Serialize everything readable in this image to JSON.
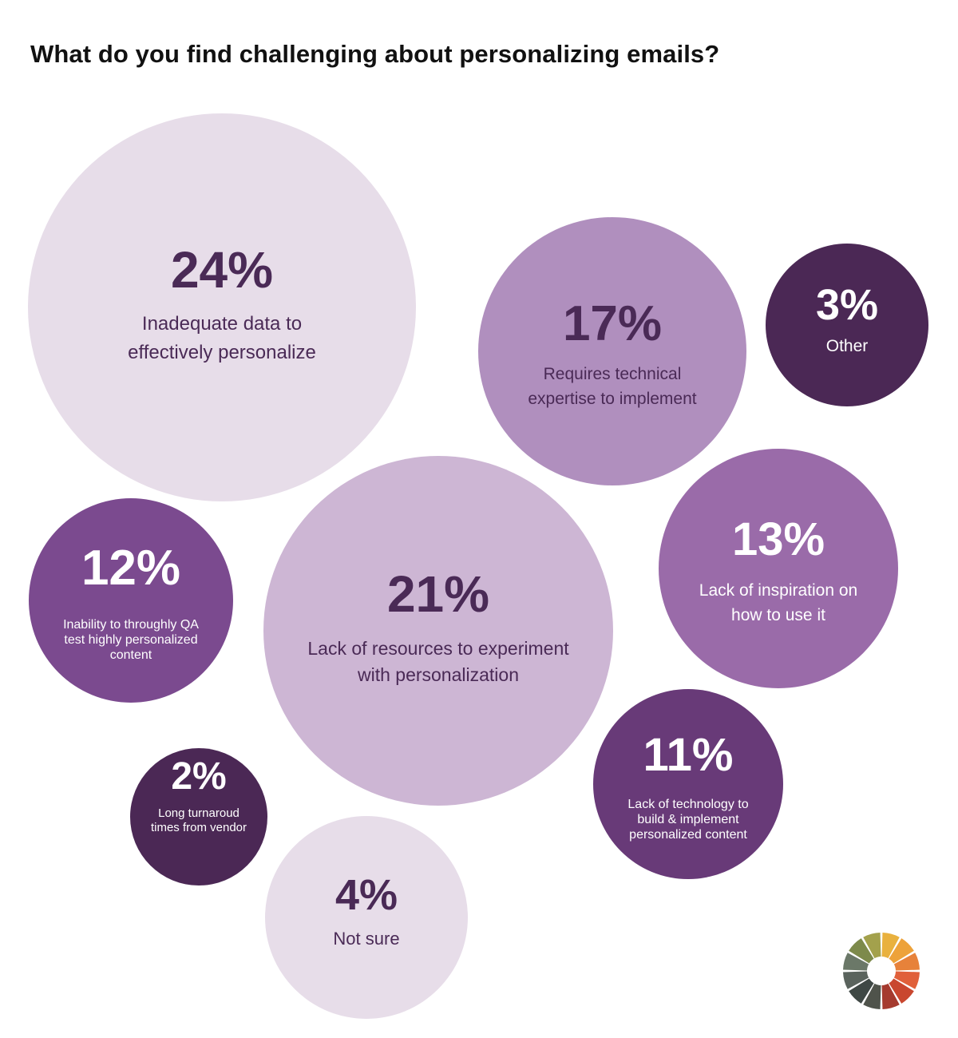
{
  "title": "What do you find challenging about personalizing emails?",
  "chart_data": {
    "type": "bubble",
    "title": "What do you find challenging about personalizing emails?",
    "items": [
      {
        "pct": "24%",
        "value": 24,
        "label": [
          "Inadequate data to",
          "effectively personalize"
        ],
        "fill": "#e7dde9",
        "text_color": "#4a2a56"
      },
      {
        "pct": "17%",
        "value": 17,
        "label": [
          "Requires technical",
          "expertise to implement"
        ],
        "fill": "#b08fbe",
        "text_color": "#4a2a56"
      },
      {
        "pct": "3%",
        "value": 3,
        "label": [
          "Other"
        ],
        "fill": "#4b2855",
        "text_color": "#ffffff"
      },
      {
        "pct": "12%",
        "value": 12,
        "label": [
          "Inability to throughly QA",
          "test highly personalized",
          "content"
        ],
        "fill": "#7b4a8f",
        "text_color": "#ffffff"
      },
      {
        "pct": "21%",
        "value": 21,
        "label": [
          "Lack of resources to experiment",
          "with personalization"
        ],
        "fill": "#cdb6d4",
        "text_color": "#4a2a56"
      },
      {
        "pct": "13%",
        "value": 13,
        "label": [
          "Lack of inspiration on",
          "how to use it"
        ],
        "fill": "#9a6ba9",
        "text_color": "#ffffff"
      },
      {
        "pct": "2%",
        "value": 2,
        "label": [
          "Long turnaroud",
          "times from vendor"
        ],
        "fill": "#4b2855",
        "text_color": "#ffffff"
      },
      {
        "pct": "11%",
        "value": 11,
        "label": [
          "Lack of technology to",
          "build & implement",
          "personalized content"
        ],
        "fill": "#683a78",
        "text_color": "#ffffff"
      },
      {
        "pct": "4%",
        "value": 4,
        "label": [
          "Not sure"
        ],
        "fill": "#e7dde9",
        "text_color": "#4a2a56"
      }
    ]
  },
  "logo": {
    "icon": "color-wheel-logo-icon",
    "segment_colors": [
      "#e9b13e",
      "#eda23a",
      "#e7823a",
      "#e0603a",
      "#c9472f",
      "#a53a2e",
      "#4f534b",
      "#3f4845",
      "#5a635d",
      "#6b7868",
      "#7d8a4b",
      "#a3a14c"
    ]
  }
}
